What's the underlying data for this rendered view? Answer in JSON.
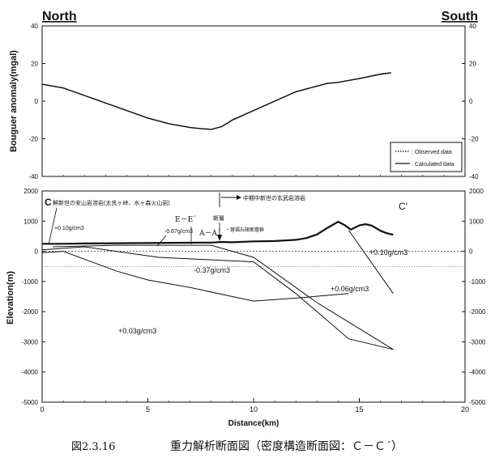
{
  "chart_data": [
    {
      "type": "line",
      "labels": {
        "left": "North",
        "right": "South"
      },
      "ylabel": "Bouguer anomaly(mgal)",
      "ylim": [
        -40,
        40
      ],
      "y_ticks": [
        "40",
        "20",
        "0",
        "-20",
        "-40"
      ],
      "series": [
        {
          "name": ": Observed data",
          "x": [
            0,
            1,
            2,
            3,
            4,
            5,
            6,
            7,
            7.5,
            8,
            8.5,
            9,
            10,
            11,
            12,
            13,
            13.5,
            14,
            15,
            16,
            16.5
          ],
          "y": [
            9,
            7,
            3,
            -1,
            -5,
            -9,
            -12,
            -14,
            -14.6,
            -15,
            -13.5,
            -10,
            -5,
            0,
            5,
            8,
            9.5,
            10,
            12,
            14.5,
            15.2
          ]
        },
        {
          "name": ": Calculated data",
          "x": [
            0,
            1,
            2,
            3,
            4,
            5,
            6,
            7,
            7.5,
            8,
            8.5,
            9,
            10,
            11,
            12,
            13,
            13.5,
            14,
            15,
            16,
            16.5
          ],
          "y": [
            9,
            7,
            3,
            -1,
            -5,
            -9,
            -12,
            -14,
            -14.6,
            -15,
            -13.5,
            -10,
            -5,
            0,
            5,
            8,
            9.5,
            10,
            12,
            14.3,
            15
          ]
        }
      ]
    },
    {
      "type": "line",
      "xlabel": "Distance(km)",
      "ylabel": "Elevation(m)",
      "xlim": [
        0,
        20
      ],
      "ylim": [
        -5000,
        2000
      ],
      "x_ticks": [
        "0",
        "5",
        "10",
        "15",
        "20"
      ],
      "y_ticks": [
        "2000",
        "1000",
        "0",
        "-1000",
        "-2000",
        "-3000",
        "-4000",
        "-5000"
      ],
      "surface": {
        "x": [
          0,
          1,
          2,
          4,
          6,
          8,
          8.5,
          9,
          10,
          11,
          12,
          12.5,
          13,
          13.5,
          14,
          14.3,
          14.6,
          15,
          15.3,
          15.6,
          16,
          16.3,
          16.6
        ],
        "y": [
          250,
          250,
          260,
          270,
          280,
          290,
          310,
          300,
          330,
          340,
          380,
          440,
          560,
          780,
          980,
          870,
          720,
          860,
          900,
          850,
          680,
          600,
          550
        ]
      },
      "boundaries": [
        {
          "x": [
            0,
            1,
            3.5,
            5,
            7,
            10,
            12,
            14.5
          ],
          "y": [
            -50,
            0,
            -650,
            -950,
            -1200,
            -1650,
            -1550,
            -1400
          ]
        },
        {
          "x": [
            0,
            2,
            5.5,
            10,
            12,
            14.5,
            16.6
          ],
          "y": [
            50,
            150,
            -200,
            -350,
            -1400,
            -2900,
            -3250
          ]
        },
        {
          "x": [
            0.5,
            3.5,
            8,
            10,
            13,
            16.6
          ],
          "y": [
            150,
            200,
            200,
            -200,
            -1700,
            -3250
          ]
        },
        {
          "x": [
            14.5,
            16.6
          ],
          "y": [
            700,
            -1400
          ]
        }
      ],
      "annotations": {
        "c_left": "C",
        "c_right": "C'",
        "andesite": "鮮新世の安山岩溶岩(太良ヶ峠、水ヶ森火山岩)",
        "basalt": "中期中新世の玄武岩溶岩",
        "ee": "E－E´",
        "aa": "A－A´",
        "fault": "断層",
        "fault_group": "・菅福丘陵断層群",
        "d1": "+0.10g/cm3",
        "d2": "-0.67g/cm3",
        "d3": "-0.37g/cm3",
        "d4": "+0.06g/cm3",
        "d5": "+0.10g/cm3",
        "d6": "+0.03g/cm3"
      }
    }
  ],
  "caption": {
    "figure_number": "図2.3.16",
    "title": "重力解析断面図（密度構造断面図：Ｃ－Ｃ´）"
  }
}
